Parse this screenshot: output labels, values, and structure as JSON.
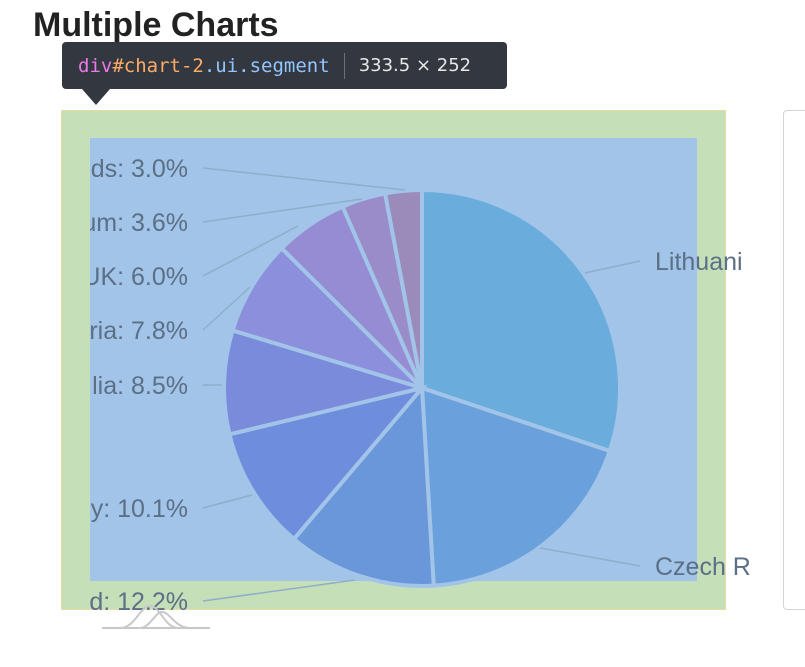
{
  "page": {
    "title": "Multiple Charts"
  },
  "tooltip": {
    "tag": "div",
    "id": "#chart-2",
    "classes": ".ui.segment",
    "size": "333.5 × 252"
  },
  "colors": {
    "margin_overlay": "#c5dfb8",
    "content_overlay": "#a1c4e8",
    "tooltip_bg": "#333740",
    "label_text": "#5b6f86"
  },
  "chart_data": {
    "type": "pie",
    "slices": [
      {
        "label": "Lithuani",
        "value": 30.3,
        "color": "#6aacdc"
      },
      {
        "label": "Czech R",
        "value": 19.0,
        "color": "#6aa1dc"
      },
      {
        "label": "d: 12.2%",
        "value": 12.2,
        "color": "#6a96da"
      },
      {
        "label": "y: 10.1%",
        "value": 10.1,
        "color": "#6e8ddc"
      },
      {
        "label": "lia: 8.5%",
        "value": 8.5,
        "color": "#7b8bdc"
      },
      {
        "label": "ria: 7.8%",
        "value": 7.8,
        "color": "#8b8fdc"
      },
      {
        "label": "UK: 6.0%",
        "value": 6.0,
        "color": "#968cd4"
      },
      {
        "label": "um: 3.6%",
        "value": 3.6,
        "color": "#998cc8"
      },
      {
        "label": "ds: 3.0%",
        "value": 3.0,
        "color": "#9a8bbb"
      }
    ]
  }
}
